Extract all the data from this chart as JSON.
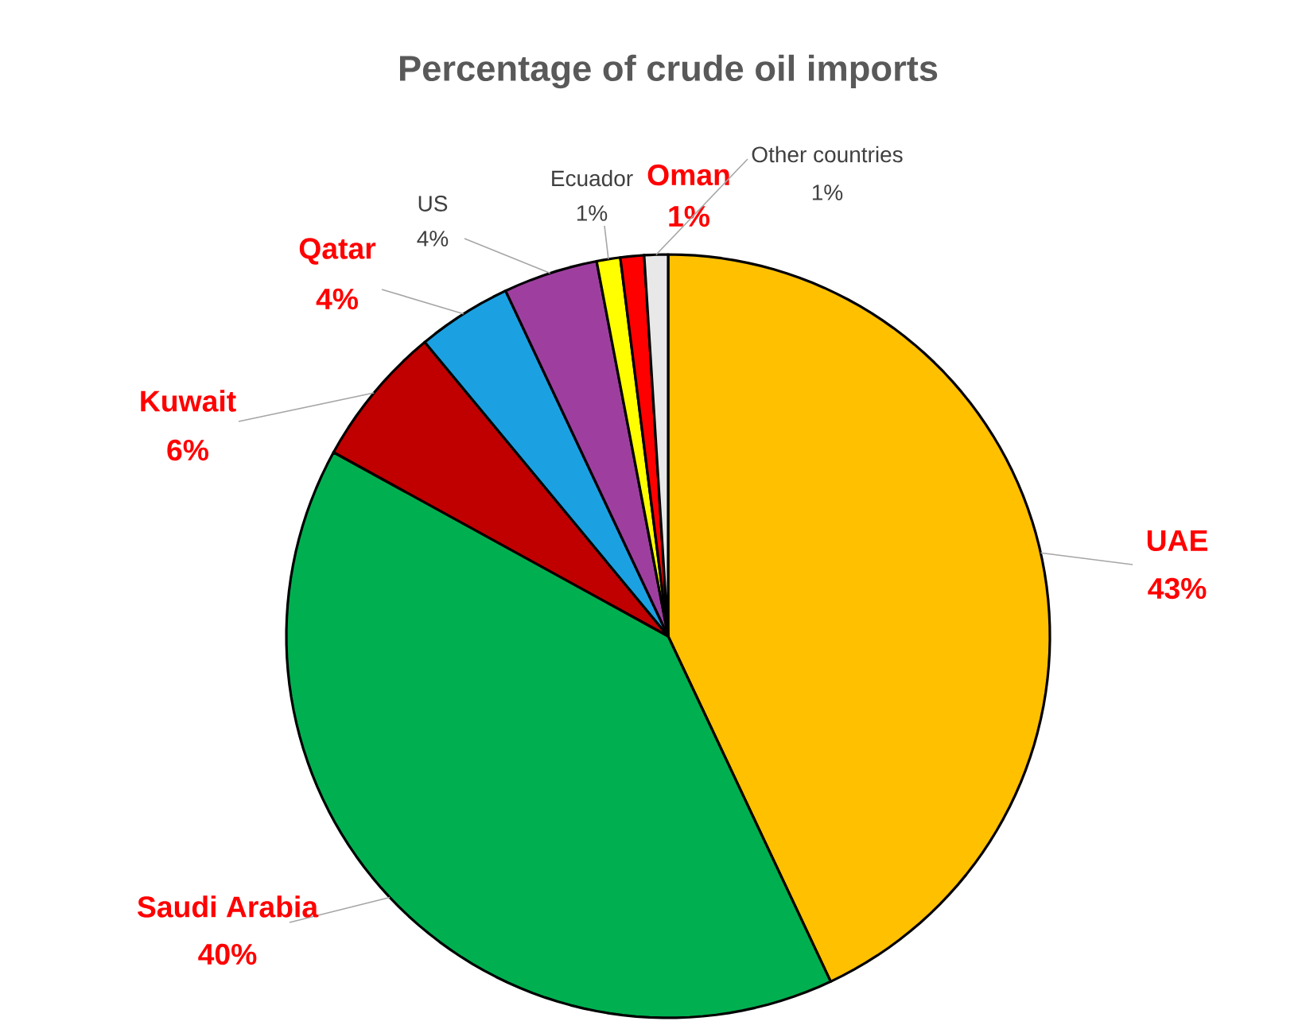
{
  "chart_data": {
    "type": "pie",
    "title": "Percentage of crude oil imports",
    "categories": [
      "UAE",
      "Saudi Arabia",
      "Kuwait",
      "Qatar",
      "US",
      "Ecuador",
      "Oman",
      "Other countries"
    ],
    "values": [
      43,
      40,
      6,
      4,
      4,
      1,
      1,
      1
    ],
    "value_labels": [
      "43%",
      "40%",
      "6%",
      "4%",
      "4%",
      "1%",
      "1%",
      "1%"
    ],
    "colors": [
      "#ffc000",
      "#00b050",
      "#c00000",
      "#1ba1e2",
      "#9e3fa0",
      "#ffff00",
      "#ff0000",
      "#e8e8e8"
    ],
    "legend": false
  }
}
